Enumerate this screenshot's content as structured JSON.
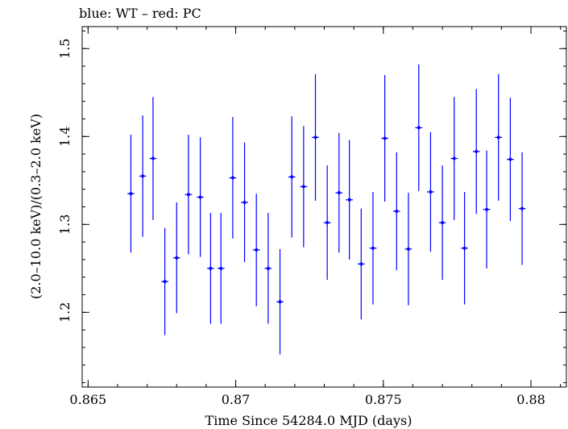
{
  "chart_data": {
    "type": "scatter",
    "title": "blue: WT – red: PC",
    "xlabel": "Time Since 54284.0 MJD (days)",
    "ylabel": "(2.0–10.0 keV)/(0.3–2.0 keV)",
    "xlim": [
      0.8648,
      0.8812
    ],
    "ylim": [
      1.115,
      1.525
    ],
    "xticks": [
      0.865,
      0.87,
      0.875,
      0.88
    ],
    "xtick_labels": [
      "0.865",
      "0.87",
      "0.875",
      "0.88"
    ],
    "yticks": [
      1.2,
      1.3,
      1.4,
      1.5
    ],
    "ytick_labels": [
      "1.2",
      "1.3",
      "1.4",
      "1.5"
    ],
    "grid": false,
    "series_color": "#0000ff",
    "points": [
      {
        "x": 0.86645,
        "xerr": 0.00012,
        "y": 1.335,
        "ylo": 1.268,
        "yhi": 1.402
      },
      {
        "x": 0.86685,
        "xerr": 0.00012,
        "y": 1.355,
        "ylo": 1.286,
        "yhi": 1.424
      },
      {
        "x": 0.8672,
        "xerr": 0.00012,
        "y": 1.375,
        "ylo": 1.305,
        "yhi": 1.445
      },
      {
        "x": 0.8676,
        "xerr": 0.00012,
        "y": 1.235,
        "ylo": 1.174,
        "yhi": 1.296
      },
      {
        "x": 0.868,
        "xerr": 0.00012,
        "y": 1.262,
        "ylo": 1.199,
        "yhi": 1.325
      },
      {
        "x": 0.8684,
        "xerr": 0.00012,
        "y": 1.334,
        "ylo": 1.266,
        "yhi": 1.402
      },
      {
        "x": 0.8688,
        "xerr": 0.00012,
        "y": 1.331,
        "ylo": 1.263,
        "yhi": 1.399
      },
      {
        "x": 0.86915,
        "xerr": 0.00012,
        "y": 1.25,
        "ylo": 1.187,
        "yhi": 1.313
      },
      {
        "x": 0.8695,
        "xerr": 0.00012,
        "y": 1.25,
        "ylo": 1.187,
        "yhi": 1.313
      },
      {
        "x": 0.8699,
        "xerr": 0.00012,
        "y": 1.353,
        "ylo": 1.284,
        "yhi": 1.422
      },
      {
        "x": 0.8703,
        "xerr": 0.00012,
        "y": 1.325,
        "ylo": 1.257,
        "yhi": 1.393
      },
      {
        "x": 0.8707,
        "xerr": 0.00012,
        "y": 1.271,
        "ylo": 1.207,
        "yhi": 1.335
      },
      {
        "x": 0.8711,
        "xerr": 0.00012,
        "y": 1.25,
        "ylo": 1.187,
        "yhi": 1.313
      },
      {
        "x": 0.8715,
        "xerr": 0.00012,
        "y": 1.212,
        "ylo": 1.152,
        "yhi": 1.272
      },
      {
        "x": 0.8719,
        "xerr": 0.00012,
        "y": 1.354,
        "ylo": 1.285,
        "yhi": 1.423
      },
      {
        "x": 0.8723,
        "xerr": 0.00012,
        "y": 1.343,
        "ylo": 1.274,
        "yhi": 1.412
      },
      {
        "x": 0.8727,
        "xerr": 0.00012,
        "y": 1.399,
        "ylo": 1.327,
        "yhi": 1.471
      },
      {
        "x": 0.8731,
        "xerr": 0.00012,
        "y": 1.302,
        "ylo": 1.237,
        "yhi": 1.367
      },
      {
        "x": 0.8735,
        "xerr": 0.00012,
        "y": 1.336,
        "ylo": 1.268,
        "yhi": 1.404
      },
      {
        "x": 0.87385,
        "xerr": 0.00012,
        "y": 1.328,
        "ylo": 1.26,
        "yhi": 1.396
      },
      {
        "x": 0.87425,
        "xerr": 0.00012,
        "y": 1.255,
        "ylo": 1.192,
        "yhi": 1.318
      },
      {
        "x": 0.87465,
        "xerr": 0.00012,
        "y": 1.273,
        "ylo": 1.209,
        "yhi": 1.337
      },
      {
        "x": 0.87505,
        "xerr": 0.00012,
        "y": 1.398,
        "ylo": 1.326,
        "yhi": 1.47
      },
      {
        "x": 0.87545,
        "xerr": 0.00012,
        "y": 1.315,
        "ylo": 1.248,
        "yhi": 1.382
      },
      {
        "x": 0.87585,
        "xerr": 0.00012,
        "y": 1.272,
        "ylo": 1.208,
        "yhi": 1.336
      },
      {
        "x": 0.8762,
        "xerr": 0.00012,
        "y": 1.41,
        "ylo": 1.338,
        "yhi": 1.482
      },
      {
        "x": 0.8766,
        "xerr": 0.00012,
        "y": 1.337,
        "ylo": 1.269,
        "yhi": 1.405
      },
      {
        "x": 0.877,
        "xerr": 0.00012,
        "y": 1.302,
        "ylo": 1.237,
        "yhi": 1.367
      },
      {
        "x": 0.8774,
        "xerr": 0.00012,
        "y": 1.375,
        "ylo": 1.305,
        "yhi": 1.445
      },
      {
        "x": 0.87775,
        "xerr": 0.00012,
        "y": 1.273,
        "ylo": 1.209,
        "yhi": 1.337
      },
      {
        "x": 0.87815,
        "xerr": 0.00012,
        "y": 1.383,
        "ylo": 1.312,
        "yhi": 1.454
      },
      {
        "x": 0.8785,
        "xerr": 0.00012,
        "y": 1.317,
        "ylo": 1.25,
        "yhi": 1.384
      },
      {
        "x": 0.8789,
        "xerr": 0.00012,
        "y": 1.399,
        "ylo": 1.327,
        "yhi": 1.471
      },
      {
        "x": 0.8793,
        "xerr": 0.00012,
        "y": 1.374,
        "ylo": 1.304,
        "yhi": 1.444
      },
      {
        "x": 0.8797,
        "xerr": 0.00012,
        "y": 1.318,
        "ylo": 1.254,
        "yhi": 1.382
      }
    ]
  }
}
